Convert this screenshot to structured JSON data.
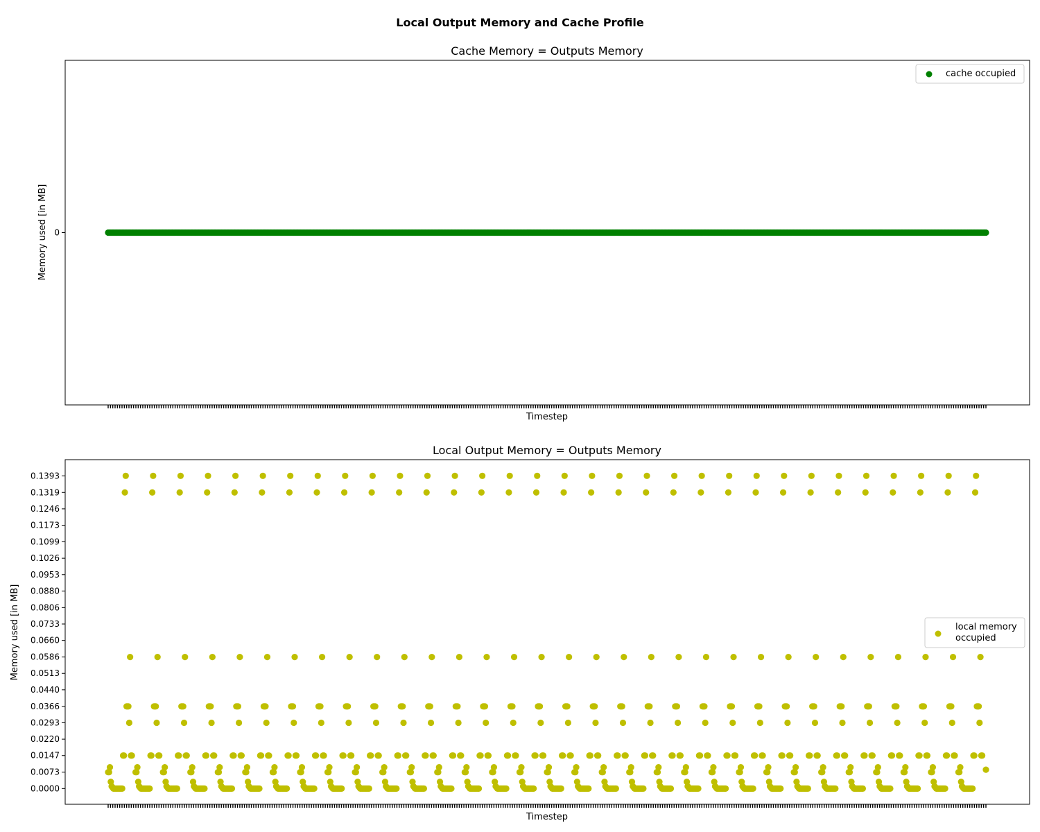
{
  "figure": {
    "suptitle": "Local Output Memory and Cache Profile"
  },
  "chart_data": [
    {
      "type": "scatter",
      "title": "Cache Memory = Outputs Memory",
      "xlabel": "Timestep",
      "ylabel": "Memory used [in MB]",
      "yticks": [
        "0"
      ],
      "ylim": [
        -0.055,
        0.055
      ],
      "legend": {
        "location": "upper right",
        "entries": [
          "cache occupied"
        ]
      },
      "grid": false,
      "series": [
        {
          "name": "cache occupied",
          "color": "#008000",
          "pattern": "every timestep",
          "count": 1000,
          "y": 0
        }
      ]
    },
    {
      "type": "scatter",
      "title": "Local Output Memory = Outputs Memory",
      "xlabel": "Timestep",
      "ylabel": "Memory used [in MB]",
      "yticks": [
        "0.0000",
        "0.0073",
        "0.0147",
        "0.0220",
        "0.0293",
        "0.0366",
        "0.0440",
        "0.0513",
        "0.0586",
        "0.0660",
        "0.0733",
        "0.0806",
        "0.0880",
        "0.0953",
        "0.1026",
        "0.1099",
        "0.1173",
        "0.1246",
        "0.1319",
        "0.1393"
      ],
      "ylim": [
        -0.007,
        0.1465
      ],
      "legend": {
        "location": "center right",
        "entries": [
          "local memory",
          "occupied"
        ]
      },
      "grid": false,
      "series": [
        {
          "name": "local memory\noccupied",
          "color": "#bfbf00",
          "cycles": 32,
          "cycle_length": 31.25,
          "cycle_pattern": [
            {
              "t": 0,
              "y": 0.0073
            },
            {
              "t": 1,
              "y": 0.0073
            },
            {
              "t": 2,
              "y": 0.0095
            },
            {
              "t": 3,
              "y": 0.003
            },
            {
              "t": 4,
              "y": 0.001
            },
            {
              "t": 5,
              "y": 0.0005
            },
            {
              "t": 6,
              "y": 0
            },
            {
              "t": 7,
              "y": 0
            },
            {
              "t": 8,
              "y": 0
            },
            {
              "t": 9,
              "y": 0
            },
            {
              "t": 10,
              "y": 0
            },
            {
              "t": 11,
              "y": 0
            },
            {
              "t": 12,
              "y": 0
            },
            {
              "t": 13,
              "y": 0
            },
            {
              "t": 14,
              "y": 0
            },
            {
              "t": 15,
              "y": 0
            },
            {
              "t": 16,
              "y": 0
            },
            {
              "t": 17,
              "y": 0.0147
            },
            {
              "t": 18,
              "y": 0.0147
            },
            {
              "t": 19,
              "y": 0.1319
            },
            {
              "t": 20,
              "y": 0.1393
            },
            {
              "t": 21,
              "y": 0.0366
            },
            {
              "t": 22,
              "y": 0.0366
            },
            {
              "t": 23,
              "y": 0.0366
            },
            {
              "t": 24,
              "y": 0.0293
            },
            {
              "t": 25,
              "y": 0.0586
            },
            {
              "t": 26,
              "y": 0.0147
            },
            {
              "t": 27,
              "y": 0.0147
            }
          ],
          "final_point": 0.0084
        }
      ]
    }
  ]
}
